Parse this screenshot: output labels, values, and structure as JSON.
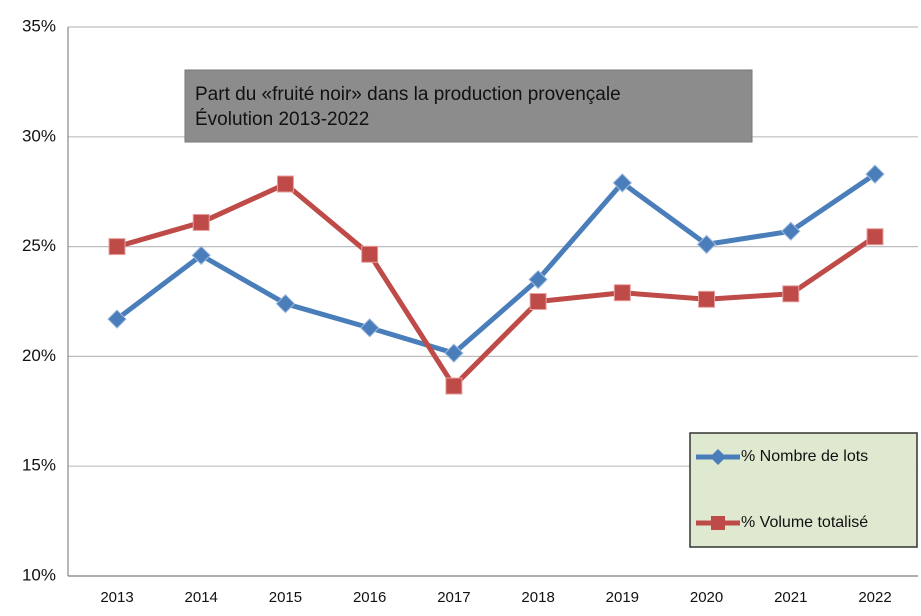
{
  "chart_data": {
    "type": "line",
    "title": "Part du «fruité noir» dans la production provençale",
    "subtitle": "Évolution 2013-2022",
    "categories": [
      "2013",
      "2014",
      "2015",
      "2016",
      "2017",
      "2018",
      "2019",
      "2020",
      "2021",
      "2022"
    ],
    "series": [
      {
        "name": "% Nombre de lots",
        "color": "#4a7ebb",
        "marker": "diamond",
        "values": [
          21.7,
          24.6,
          22.4,
          21.3,
          20.15,
          23.5,
          27.9,
          25.1,
          25.7,
          28.3
        ]
      },
      {
        "name": "% Volume totalisé",
        "color": "#be4b48",
        "marker": "square",
        "values": [
          25.0,
          26.1,
          27.85,
          24.65,
          18.65,
          22.5,
          22.9,
          22.6,
          22.85,
          25.45
        ]
      }
    ],
    "ylim": [
      10,
      35
    ],
    "yticks": [
      {
        "value": 10,
        "label": "10%"
      },
      {
        "value": 15,
        "label": "15%"
      },
      {
        "value": 20,
        "label": "20%"
      },
      {
        "value": 25,
        "label": "25%"
      },
      {
        "value": 30,
        "label": "30%"
      },
      {
        "value": 35,
        "label": "35%"
      }
    ],
    "grid": true,
    "legend": "lower right"
  }
}
